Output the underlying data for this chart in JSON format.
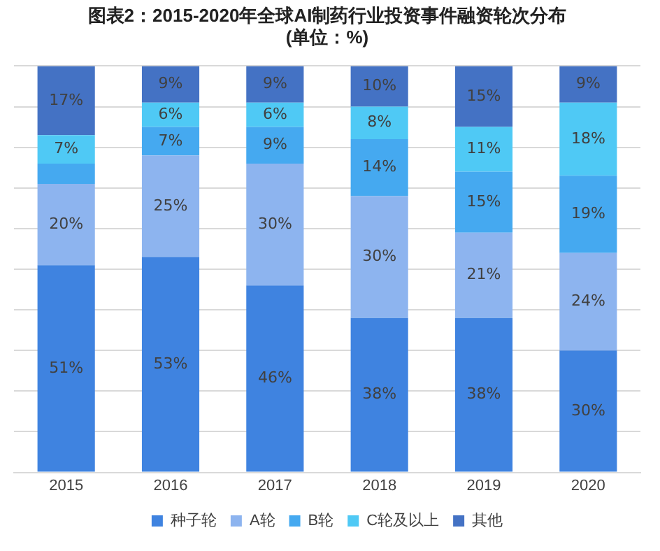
{
  "chart_data": {
    "type": "bar",
    "title": [
      "图表2：2015-2020年全球AI制药行业投资事件融资轮次分布",
      "(单位：%)"
    ],
    "categories": [
      "2015",
      "2016",
      "2017",
      "2018",
      "2019",
      "2020"
    ],
    "stacked": true,
    "ylim": [
      0,
      100
    ],
    "yticks": [
      {
        "value": 0,
        "label": null
      },
      {
        "value": 10,
        "label": null
      },
      {
        "value": 20,
        "label": null
      },
      {
        "value": 30,
        "label": null
      },
      {
        "value": 40,
        "label": null
      },
      {
        "value": 50,
        "label": null
      },
      {
        "value": 60,
        "label": null
      },
      {
        "value": 70,
        "label": null
      },
      {
        "value": 80,
        "label": null
      },
      {
        "value": 90,
        "label": null
      },
      {
        "value": 100,
        "label": null
      }
    ],
    "grid": "y",
    "legend": "bottom",
    "tick_labels": "x",
    "series": [
      {
        "name": "种子轮",
        "color": "#3f83e0",
        "values": [
          51,
          53,
          46,
          38,
          38,
          30
        ],
        "value_labels": [
          "51%",
          "53%",
          "46%",
          "38%",
          "38%",
          "30%"
        ]
      },
      {
        "name": "A轮",
        "color": "#8db4ef",
        "values": [
          20,
          25,
          30,
          30,
          21,
          24
        ],
        "value_labels": [
          "20%",
          "25%",
          "30%",
          "30%",
          "21%",
          "24%"
        ]
      },
      {
        "name": "B轮",
        "color": "#45a9f0",
        "values": [
          5,
          7,
          9,
          14,
          15,
          19
        ],
        "value_labels": [
          null,
          "7%",
          "9%",
          "14%",
          "15%",
          "19%"
        ]
      },
      {
        "name": "C轮及以上",
        "color": "#4fc9f5",
        "values": [
          7,
          6,
          6,
          8,
          11,
          18
        ],
        "value_labels": [
          "7%",
          "6%",
          "6%",
          "8%",
          "11%",
          "18%"
        ]
      },
      {
        "name": "其他",
        "color": "#4472c4",
        "values": [
          17,
          9,
          9,
          10,
          15,
          9
        ],
        "value_labels": [
          "17%",
          "9%",
          "9%",
          "10%",
          "15%",
          "9%"
        ]
      }
    ]
  }
}
